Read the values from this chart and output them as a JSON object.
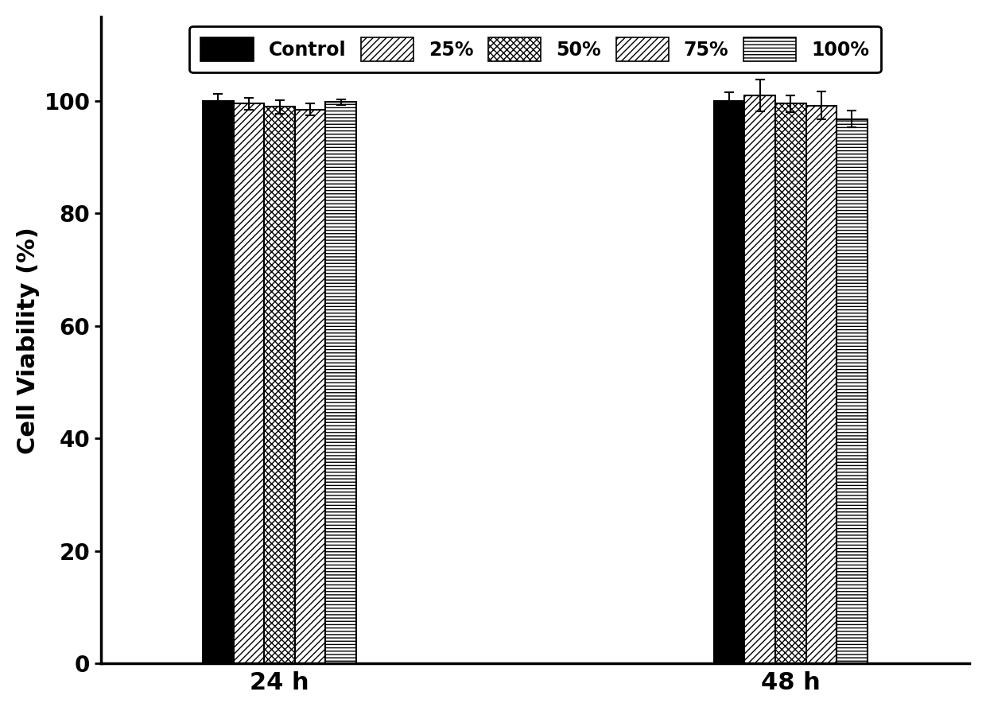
{
  "groups": [
    "24 h",
    "48 h"
  ],
  "categories": [
    "Control",
    "25%",
    "50%",
    "75%",
    "100%"
  ],
  "values": [
    [
      100.0,
      99.5,
      99.0,
      98.5,
      99.8
    ],
    [
      100.0,
      101.0,
      99.5,
      99.2,
      96.8
    ]
  ],
  "errors": [
    [
      1.2,
      1.0,
      1.2,
      1.0,
      0.5
    ],
    [
      1.5,
      2.8,
      1.5,
      2.5,
      1.5
    ]
  ],
  "ylabel": "Cell Viability (%)",
  "ylim": [
    0,
    115
  ],
  "yticks": [
    0,
    20,
    40,
    60,
    80,
    100
  ],
  "xlabel_fontsize": 22,
  "ylabel_fontsize": 22,
  "tick_fontsize": 20,
  "legend_fontsize": 17,
  "bar_width": 0.09,
  "group_centers": [
    1.0,
    2.5
  ],
  "background_color": "#ffffff",
  "edge_color": "#000000",
  "hatch_patterns": [
    "",
    "////",
    "xxxx",
    "////",
    "----"
  ],
  "bar_face_colors": [
    "#000000",
    "#ffffff",
    "#ffffff",
    "#ffffff",
    "#ffffff"
  ]
}
